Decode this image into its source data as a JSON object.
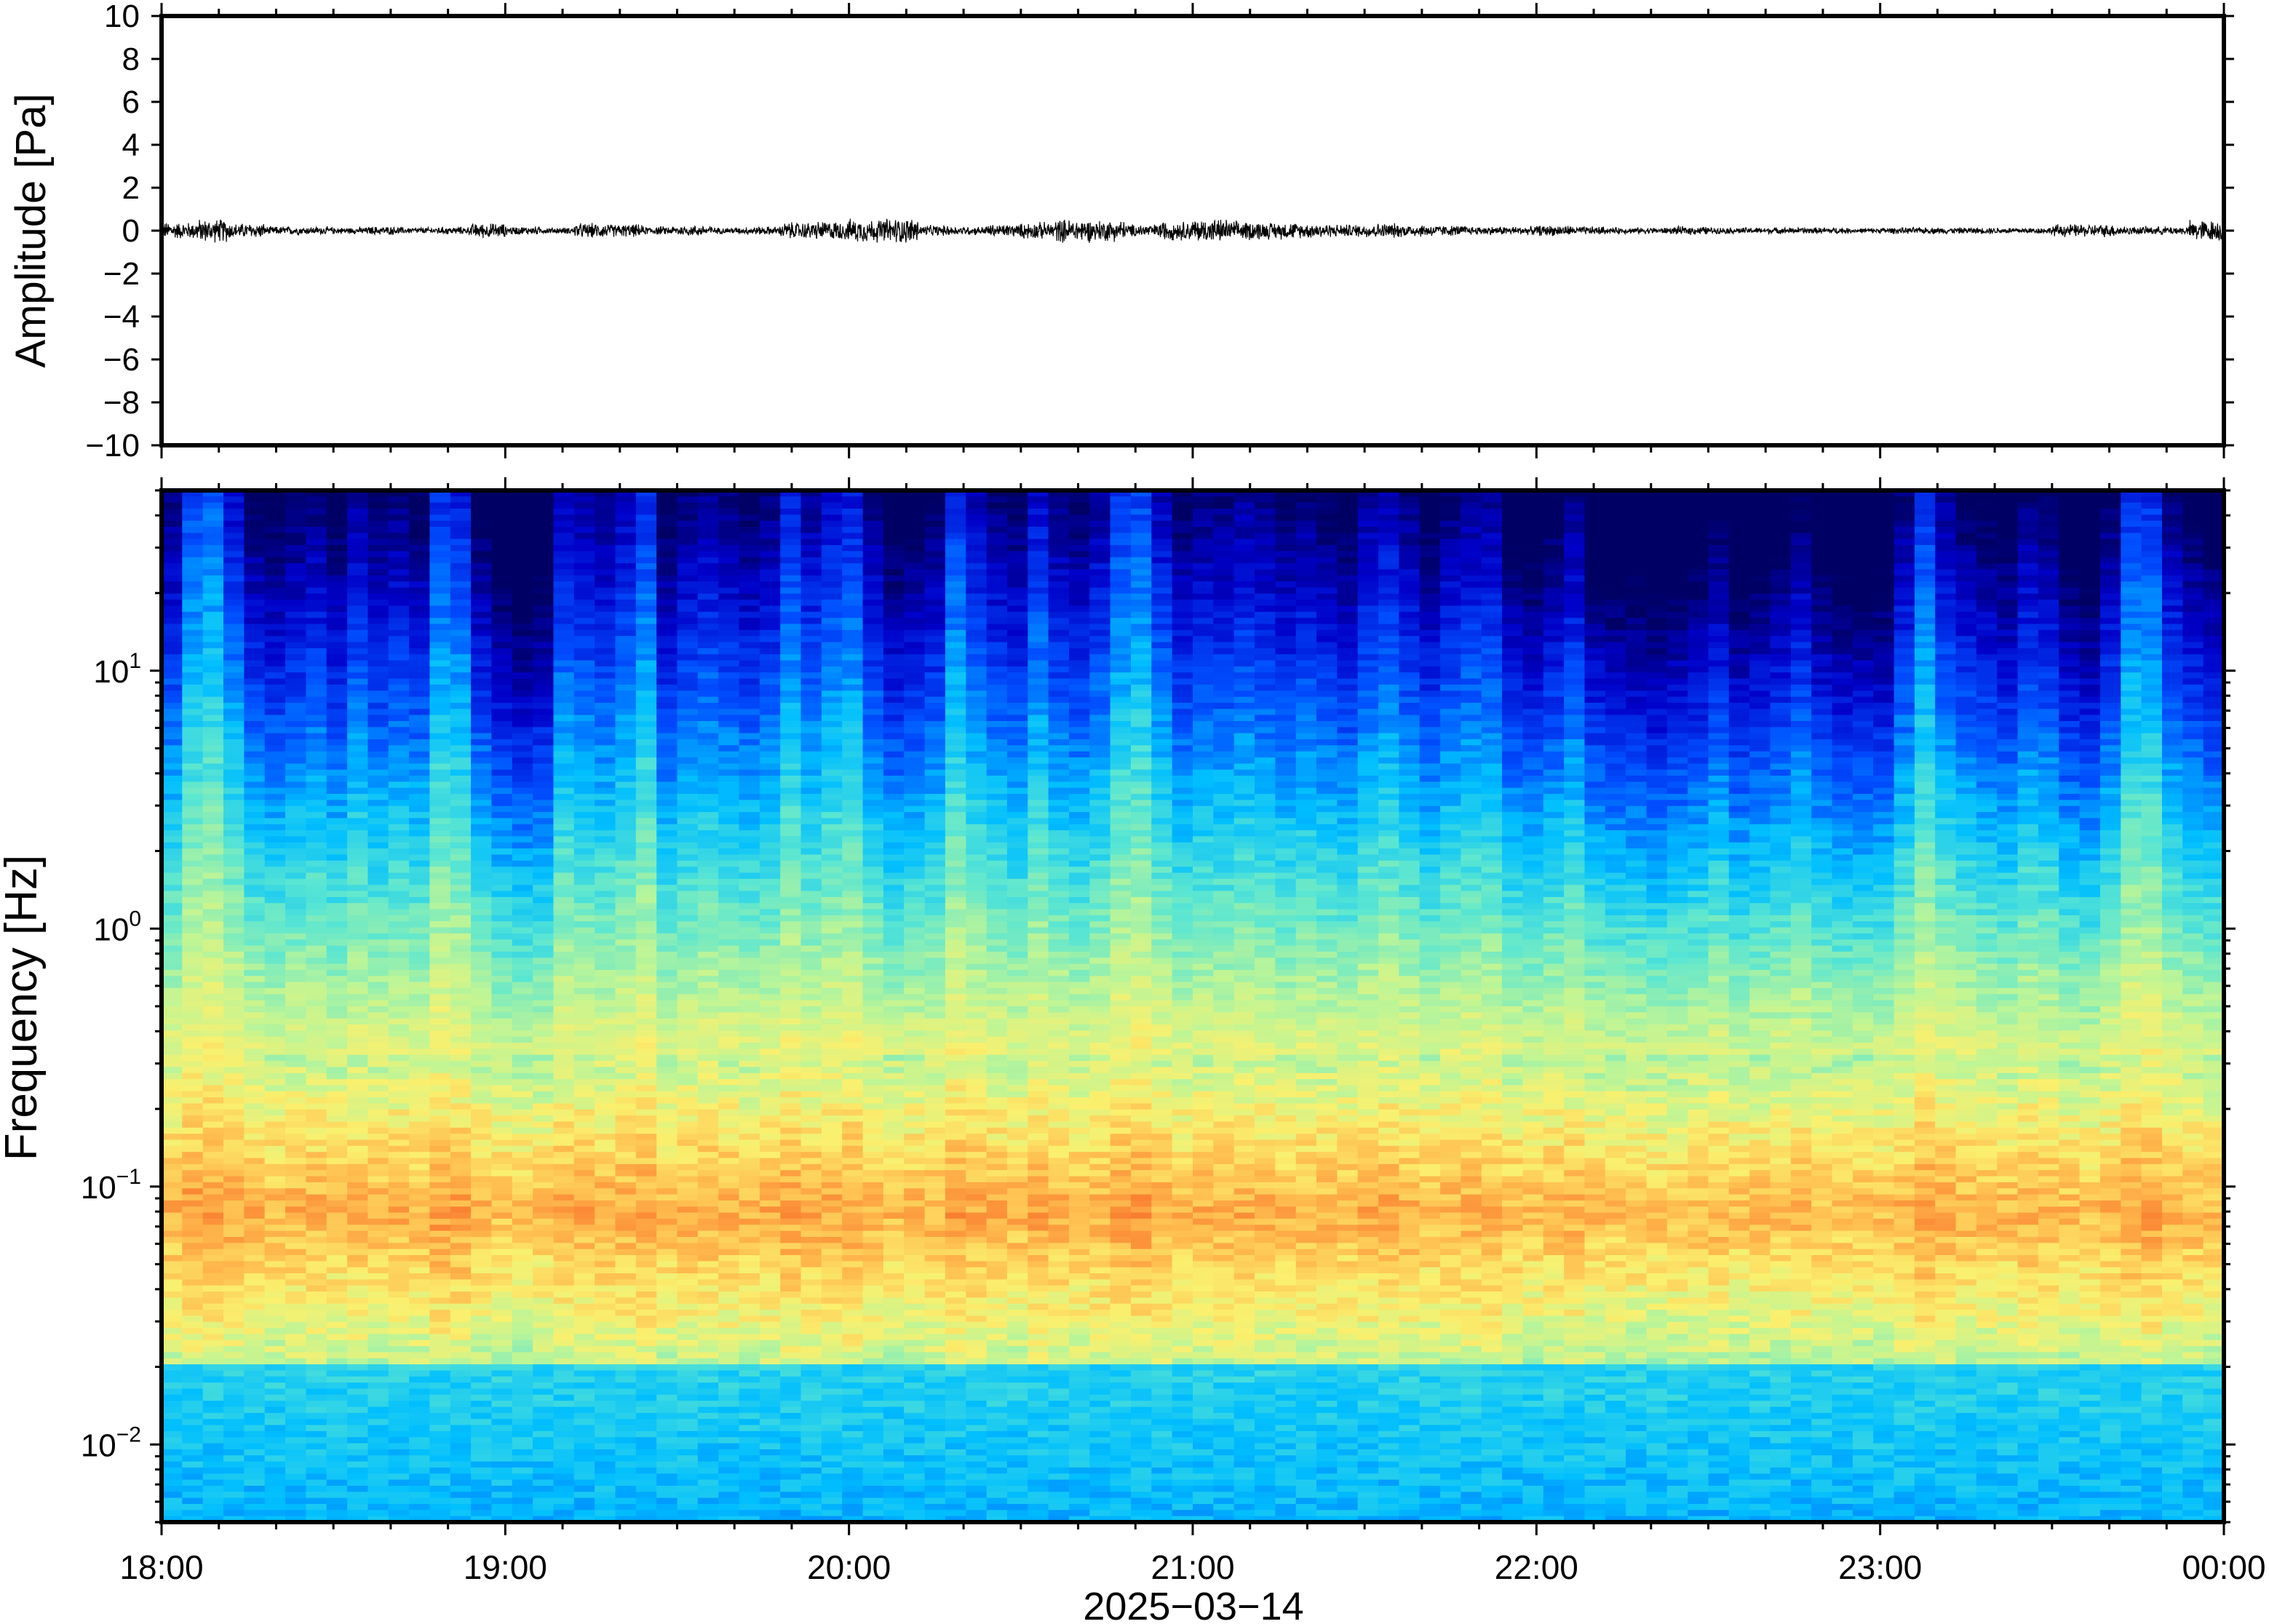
{
  "chart_data": [
    {
      "type": "line",
      "panel": "waveform",
      "ylabel": "Amplitude [Pa]",
      "ylim": [
        -10,
        10
      ],
      "yticks": [
        -10,
        -8,
        -6,
        -4,
        -2,
        0,
        2,
        4,
        6,
        8,
        10
      ],
      "ytick_labels": [
        "−10",
        "−8",
        "−6",
        "−4",
        "−2",
        "0",
        "2",
        "4",
        "6",
        "8",
        "10"
      ],
      "xlim_hours": [
        18,
        24
      ],
      "envelope_amplitude": [
        0.4,
        0.55,
        0.35,
        0.2,
        0.18,
        0.15,
        0.2,
        0.15,
        0.18,
        0.35,
        0.2,
        0.15,
        0.35,
        0.3,
        0.2,
        0.25,
        0.15,
        0.2,
        0.4,
        0.45,
        0.55,
        0.6,
        0.25,
        0.2,
        0.3,
        0.4,
        0.55,
        0.5,
        0.3,
        0.45,
        0.55,
        0.45,
        0.4,
        0.35,
        0.3,
        0.35,
        0.3,
        0.25,
        0.2,
        0.2,
        0.25,
        0.2,
        0.15,
        0.15,
        0.2,
        0.15,
        0.15,
        0.15,
        0.15,
        0.12,
        0.15,
        0.15,
        0.15,
        0.15,
        0.15,
        0.3,
        0.3,
        0.2,
        0.2,
        0.5
      ],
      "grid": false
    },
    {
      "type": "heatmap",
      "panel": "spectrogram",
      "ylabel": "Frequency [Hz]",
      "yscale": "log",
      "ylim_hz": [
        0.005,
        50
      ],
      "yticks_hz": [
        0.01,
        0.1,
        1,
        10
      ],
      "ytick_labels": [
        {
          "base": "10",
          "exp": "−2"
        },
        {
          "base": "10",
          "exp": "−1"
        },
        {
          "base": "10",
          "exp": "0"
        },
        {
          "base": "10",
          "exp": "1"
        }
      ],
      "xlabel": "2025−03−14",
      "xticks": [
        "18:00",
        "19:00",
        "20:00",
        "21:00",
        "22:00",
        "23:00",
        "00:00"
      ],
      "xlim_hours": [
        18,
        24
      ],
      "colormap": "jet",
      "column_activity": [
        0.55,
        0.85,
        0.9,
        0.7,
        0.5,
        0.45,
        0.5,
        0.55,
        0.45,
        0.6,
        0.5,
        0.55,
        0.5,
        0.8,
        0.75,
        0.45,
        0.3,
        0.25,
        0.3,
        0.65,
        0.6,
        0.55,
        0.65,
        0.8,
        0.45,
        0.55,
        0.6,
        0.55,
        0.5,
        0.55,
        0.75,
        0.6,
        0.7,
        0.75,
        0.55,
        0.4,
        0.45,
        0.5,
        0.8,
        0.65,
        0.55,
        0.5,
        0.7,
        0.55,
        0.5,
        0.6,
        0.8,
        0.85,
        0.65,
        0.5,
        0.55,
        0.55,
        0.6,
        0.55,
        0.5,
        0.55,
        0.5,
        0.45,
        0.6,
        0.65,
        0.55,
        0.45,
        0.55,
        0.6,
        0.6,
        0.4,
        0.35,
        0.45,
        0.55,
        0.35,
        0.3,
        0.3,
        0.25,
        0.3,
        0.35,
        0.45,
        0.3,
        0.35,
        0.4,
        0.5,
        0.35,
        0.3,
        0.3,
        0.3,
        0.55,
        0.8,
        0.6,
        0.5,
        0.45,
        0.4,
        0.55,
        0.5,
        0.35,
        0.3,
        0.5,
        0.8,
        0.8,
        0.55,
        0.45,
        0.4
      ],
      "microseism_peak_hz": 0.08,
      "grid": false
    }
  ]
}
